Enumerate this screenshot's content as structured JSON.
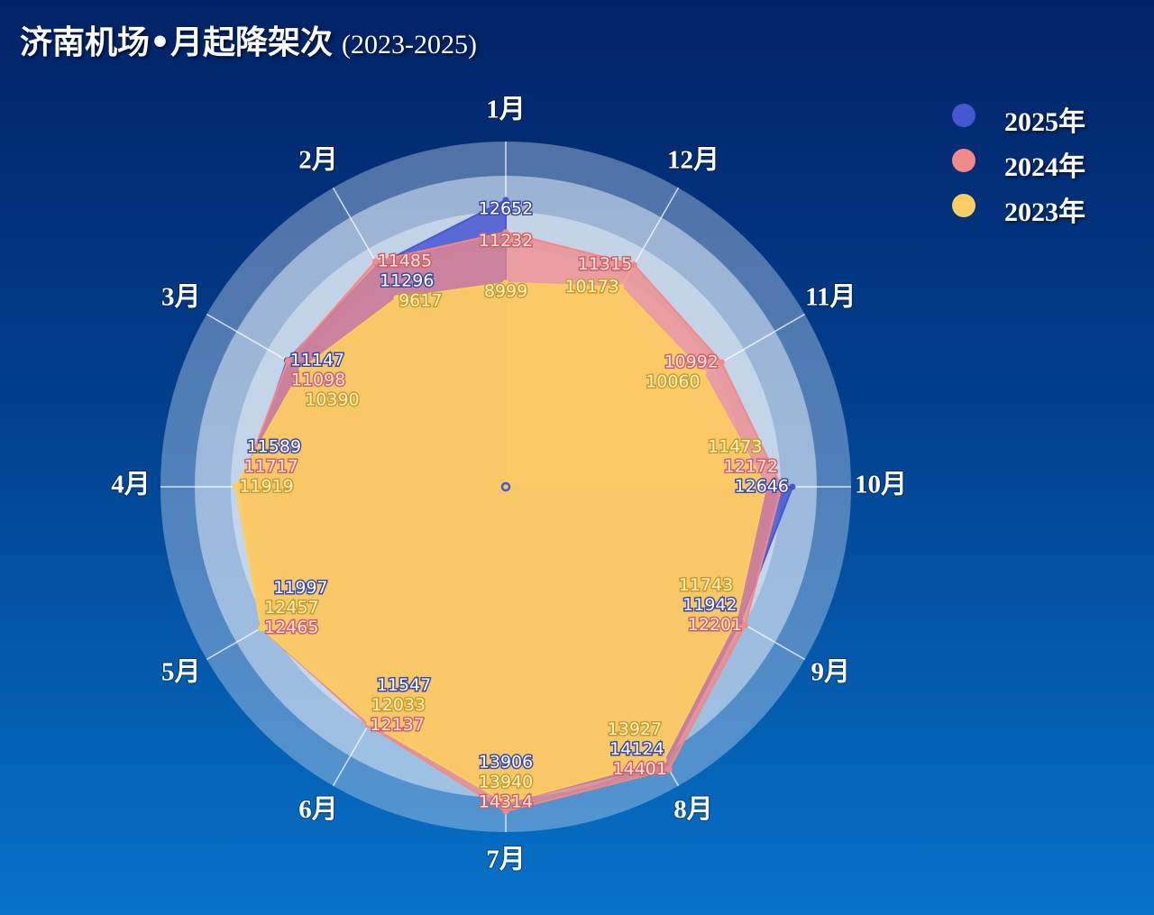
{
  "header": {
    "title": "济南机场•月起降架次",
    "subtitle": "(2023-2025)"
  },
  "colors": {
    "s2025": "#4757d2",
    "s2024": "#f28888",
    "s2023": "#fccd62"
  },
  "chart_data": {
    "type": "radar",
    "title": "济南机场•月起降架次",
    "subtitle": "(2023-2025)",
    "categories": [
      "1月",
      "12月",
      "11月",
      "10月",
      "9月",
      "8月",
      "7月",
      "6月",
      "5月",
      "4月",
      "3月",
      "2月"
    ],
    "axis_range": [
      0,
      15000
    ],
    "legend_position": "top-right",
    "series": [
      {
        "name": "2025年",
        "color": "#4757d2",
        "values": [
          12652,
          null,
          null,
          12646,
          11942,
          14124,
          13906,
          11547,
          11997,
          11589,
          11147,
          11296
        ]
      },
      {
        "name": "2024年",
        "color": "#f28888",
        "values": [
          11232,
          11315,
          10992,
          12172,
          12201,
          14401,
          14314,
          12137,
          12465,
          11717,
          11098,
          11485
        ]
      },
      {
        "name": "2023年",
        "color": "#fccd62",
        "values": [
          8999,
          10173,
          10060,
          11473,
          11743,
          13927,
          13940,
          12033,
          12457,
          11919,
          10390,
          9617
        ]
      }
    ]
  }
}
